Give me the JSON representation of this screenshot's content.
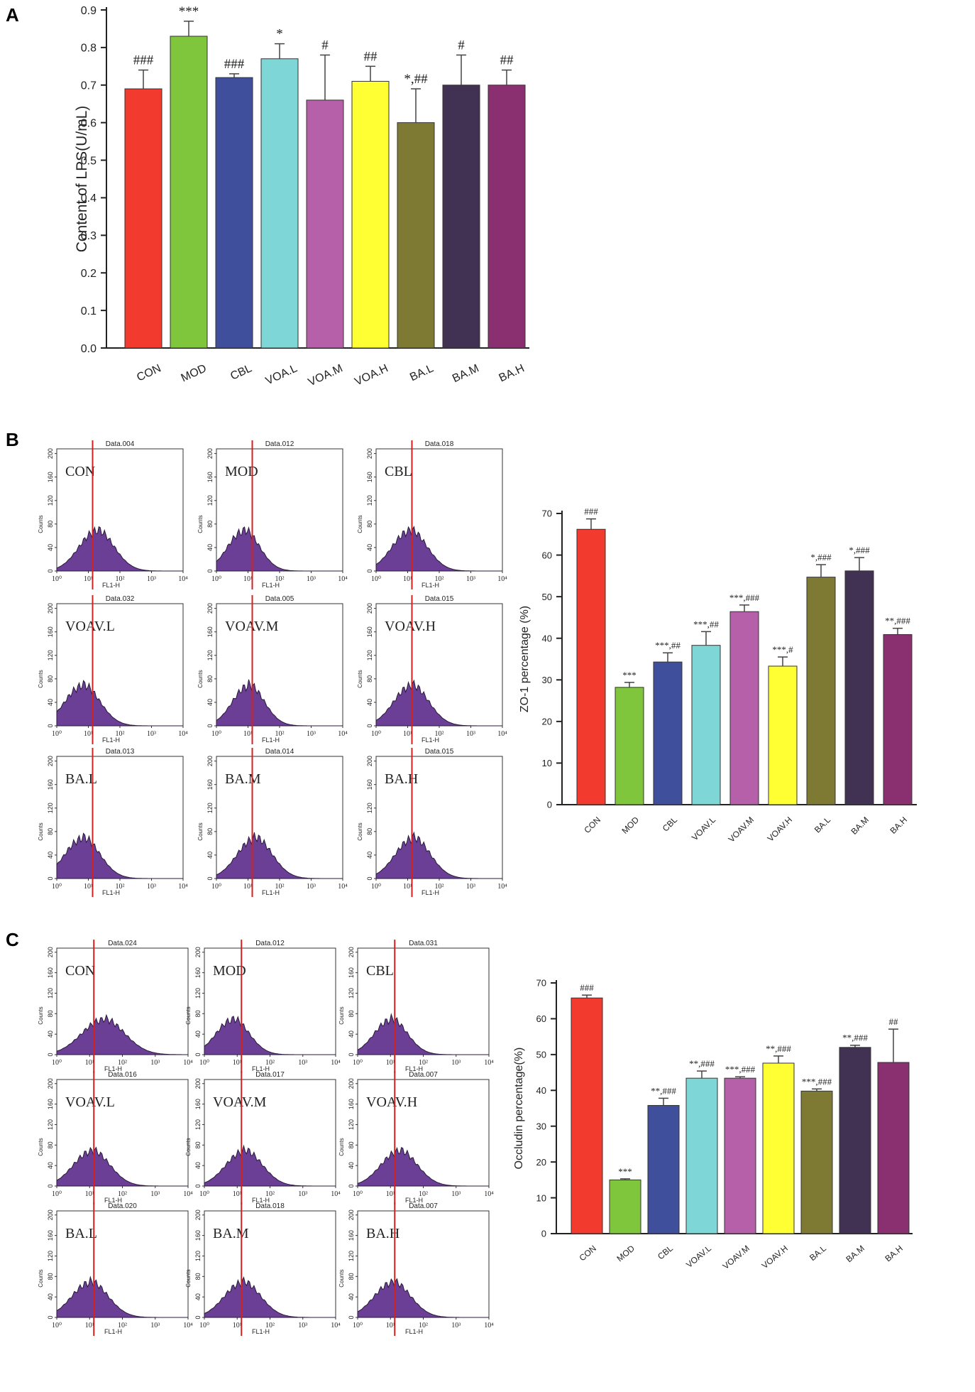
{
  "panels": {
    "a": "A",
    "b": "B",
    "c": "C"
  },
  "chart_data": [
    {
      "type": "bar",
      "id": "lps",
      "categories": [
        "CON",
        "MOD",
        "CBL",
        "VOA.L",
        "VOA.M",
        "VOA.H",
        "BA.L",
        "BA.M",
        "BA.H"
      ],
      "values": [
        0.69,
        0.83,
        0.72,
        0.77,
        0.66,
        0.71,
        0.6,
        0.7,
        0.7
      ],
      "errors": [
        0.05,
        0.04,
        0.01,
        0.04,
        0.12,
        0.04,
        0.09,
        0.08,
        0.04
      ],
      "annotations": [
        "###",
        "***",
        "###",
        "*",
        "#",
        "##",
        "*,##",
        "#",
        "##"
      ],
      "colors": [
        "#f23a2e",
        "#7fc63c",
        "#3f4f9c",
        "#7fd6d6",
        "#b560a8",
        "#ffff33",
        "#7e7a34",
        "#413152",
        "#8a3070"
      ],
      "ylabel": "Content of LPS(U/mL)",
      "ylim": [
        0,
        0.9
      ],
      "yticks": [
        0.0,
        0.1,
        0.2,
        0.3,
        0.4,
        0.5,
        0.6,
        0.7,
        0.8,
        0.9
      ],
      "ytick_labels": [
        "0.0",
        "0.1",
        "0.2",
        "0.3",
        "0.4",
        "0.5",
        "0.6",
        "0.7",
        "0.8",
        "0.9"
      ]
    },
    {
      "type": "bar",
      "id": "zo1",
      "categories": [
        "CON",
        "MOD",
        "CBL",
        "VOAV.L",
        "VOAV.M",
        "VOAV.H",
        "BA.L",
        "BA.M",
        "BA.H"
      ],
      "values": [
        66.2,
        28.2,
        34.3,
        38.3,
        46.4,
        33.3,
        54.7,
        56.2,
        40.9
      ],
      "errors": [
        2.5,
        1.2,
        2.2,
        3.3,
        1.6,
        2.2,
        3.0,
        3.2,
        1.5
      ],
      "annotations": [
        "###",
        "***",
        "***,##",
        "***,##",
        "***,###",
        "***,#",
        "*,###",
        "*,###",
        "**,###"
      ],
      "colors": [
        "#f23a2e",
        "#7fc63c",
        "#3f4f9c",
        "#7fd6d6",
        "#b560a8",
        "#ffff33",
        "#7e7a34",
        "#413152",
        "#8a3070"
      ],
      "ylabel": "ZO-1 percentage (%)",
      "ylim": [
        0,
        70
      ],
      "yticks": [
        0,
        10,
        20,
        30,
        40,
        50,
        60,
        70
      ],
      "ytick_labels": [
        "0",
        "10",
        "20",
        "30",
        "40",
        "50",
        "60",
        "70"
      ]
    },
    {
      "type": "bar",
      "id": "occludin",
      "categories": [
        "CON",
        "MOD",
        "CBL",
        "VOAV.L",
        "VOAV.M",
        "VOAV.H",
        "BA.L",
        "BA.M",
        "BA.H"
      ],
      "values": [
        65.8,
        15.0,
        35.8,
        43.4,
        43.4,
        47.6,
        39.8,
        52.0,
        47.8
      ],
      "errors": [
        0.8,
        0.3,
        2.0,
        2.0,
        0.4,
        2.0,
        0.6,
        0.6,
        9.3
      ],
      "annotations": [
        "###",
        "***",
        "**,###",
        "**,###",
        "***,###",
        "**,###",
        "***,###",
        "**,###",
        "##"
      ],
      "colors": [
        "#f23a2e",
        "#7fc63c",
        "#3f4f9c",
        "#7fd6d6",
        "#b560a8",
        "#ffff33",
        "#7e7a34",
        "#413152",
        "#8a3070"
      ],
      "ylabel": "Occludin percentage(%)",
      "ylim": [
        0,
        70
      ],
      "yticks": [
        0,
        10,
        20,
        30,
        40,
        50,
        60,
        70
      ],
      "ytick_labels": [
        "0",
        "10",
        "20",
        "30",
        "40",
        "50",
        "60",
        "70"
      ]
    }
  ],
  "histograms": {
    "common": {
      "ylabel": "Counts",
      "xlabel": "FL1-H",
      "yticks": [
        "0",
        "40",
        "80",
        "120",
        "160",
        "200"
      ],
      "xticks": [
        "10⁰",
        "10¹",
        "10²",
        "10³",
        "10⁴"
      ]
    },
    "b": [
      {
        "file": "Data.004",
        "label": "CON",
        "peak": 1.25,
        "width": 0.55
      },
      {
        "file": "Data.012",
        "label": "MOD",
        "peak": 0.85,
        "width": 0.5
      },
      {
        "file": "Data.018",
        "label": "CBL",
        "peak": 1.05,
        "width": 0.55
      },
      {
        "file": "Data.032",
        "label": "VOAV.L",
        "peak": 0.8,
        "width": 0.55
      },
      {
        "file": "Data.005",
        "label": "VOAV.M",
        "peak": 1.0,
        "width": 0.5
      },
      {
        "file": "Data.015",
        "label": "VOAV.H",
        "peak": 1.1,
        "width": 0.55
      },
      {
        "file": "Data.013",
        "label": "BA.L",
        "peak": 0.8,
        "width": 0.55
      },
      {
        "file": "Data.014",
        "label": "BA.M",
        "peak": 1.2,
        "width": 0.55
      },
      {
        "file": "Data.015",
        "label": "BA.H",
        "peak": 1.15,
        "width": 0.55
      }
    ],
    "c": [
      {
        "file": "Data.024",
        "label": "CON",
        "peak": 1.4,
        "width": 0.65
      },
      {
        "file": "Data.012",
        "label": "MOD",
        "peak": 0.85,
        "width": 0.5
      },
      {
        "file": "Data.031",
        "label": "CBL",
        "peak": 1.0,
        "width": 0.5
      },
      {
        "file": "Data.016",
        "label": "VOAV.L",
        "peak": 1.05,
        "width": 0.55
      },
      {
        "file": "Data.017",
        "label": "VOAV.M",
        "peak": 1.2,
        "width": 0.55
      },
      {
        "file": "Data.007",
        "label": "VOAV.H",
        "peak": 1.25,
        "width": 0.55
      },
      {
        "file": "Data.020",
        "label": "BA.L",
        "peak": 1.0,
        "width": 0.55
      },
      {
        "file": "Data.018",
        "label": "BA.M",
        "peak": 1.15,
        "width": 0.55
      },
      {
        "file": "Data.007",
        "label": "BA.H",
        "peak": 1.05,
        "width": 0.55
      }
    ]
  },
  "style": {
    "axis": "#222222",
    "hist_fill": "#6b3f96",
    "hist_edge": "#2a1a3a",
    "gate": "#d62020"
  }
}
